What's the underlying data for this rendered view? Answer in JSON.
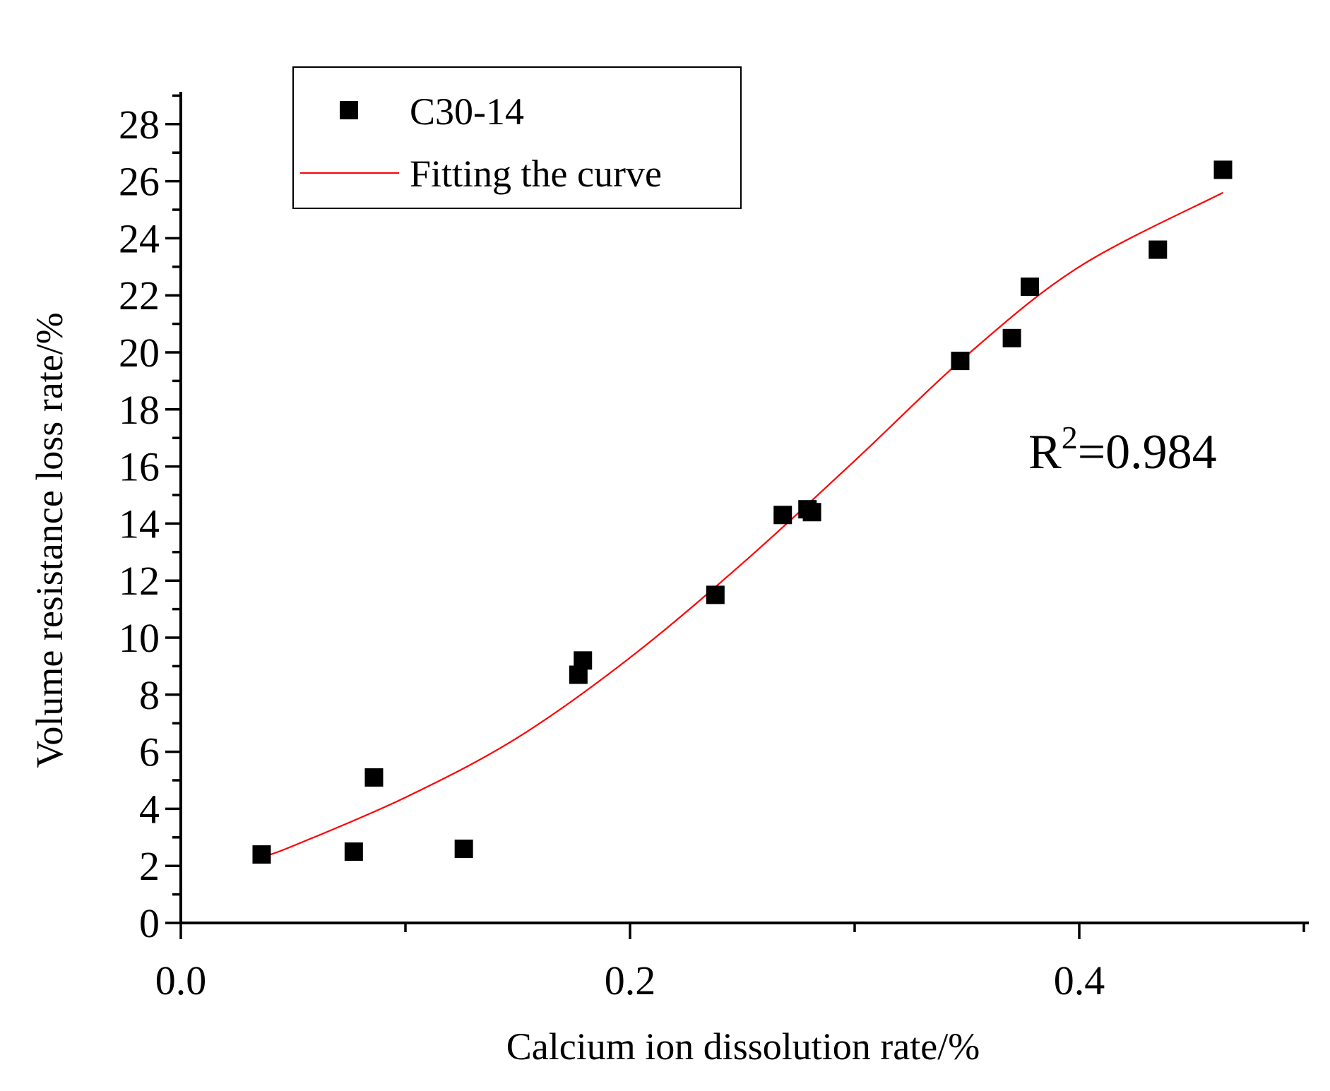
{
  "chart_data": {
    "type": "scatter",
    "title": "",
    "xlabel": "Calcium ion dissolution rate/%",
    "ylabel": "Volume resistance loss rate/%",
    "xlim": [
      0.0,
      0.5
    ],
    "ylim": [
      0,
      29
    ],
    "x_ticks": [
      0.0,
      0.2,
      0.4
    ],
    "x_tick_labels": [
      "0.0",
      "0.2",
      "0.4"
    ],
    "x_minor_ticks": [
      0.1,
      0.3,
      0.5
    ],
    "y_ticks": [
      0,
      2,
      4,
      6,
      8,
      10,
      12,
      14,
      16,
      18,
      20,
      22,
      24,
      26,
      28
    ],
    "y_tick_labels": [
      "0",
      "2",
      "4",
      "6",
      "8",
      "10",
      "12",
      "14",
      "16",
      "18",
      "20",
      "22",
      "24",
      "26",
      "28"
    ],
    "grid": false,
    "legend_position": "top-left",
    "series": [
      {
        "name": "C30-14",
        "kind": "scatter",
        "marker": "square",
        "color": "#000000",
        "x": [
          0.036,
          0.077,
          0.086,
          0.126,
          0.177,
          0.179,
          0.238,
          0.268,
          0.279,
          0.281,
          0.347,
          0.37,
          0.378,
          0.435,
          0.464
        ],
        "y": [
          2.4,
          2.5,
          5.1,
          2.6,
          8.7,
          9.2,
          11.5,
          14.3,
          14.5,
          14.4,
          19.7,
          20.5,
          22.3,
          23.6,
          26.4
        ]
      },
      {
        "name": "Fitting the curve",
        "kind": "line",
        "color": "#ff0000",
        "x": [
          0.036,
          0.05,
          0.1,
          0.15,
          0.2,
          0.25,
          0.3,
          0.35,
          0.4,
          0.464
        ],
        "y": [
          2.3,
          2.7,
          4.4,
          6.5,
          9.3,
          12.6,
          16.2,
          19.9,
          23.0,
          25.6
        ]
      }
    ],
    "annotations": [
      {
        "base": "R",
        "superscript": "2",
        "rest": "=0.984"
      }
    ]
  }
}
